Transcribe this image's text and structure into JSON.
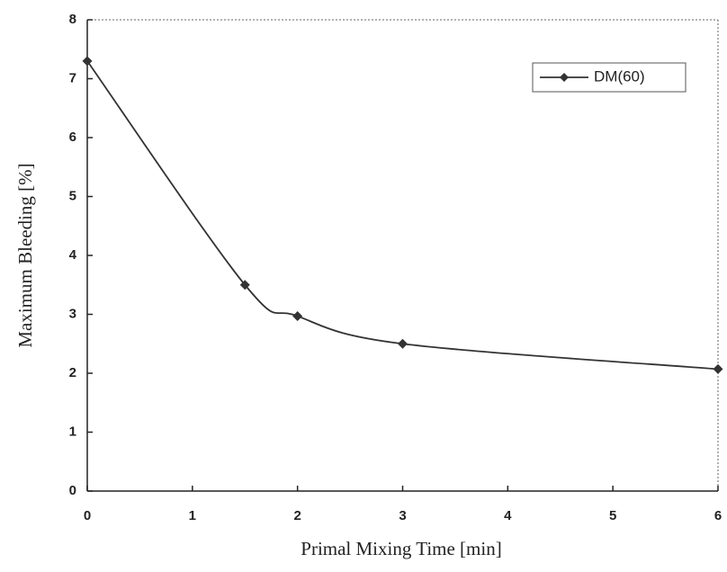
{
  "chart_data": {
    "type": "line",
    "x_label": "Primal Mixing Time [min]",
    "y_label": "Maximum Bleeding [%]",
    "x": [
      0,
      1.5,
      2,
      3,
      6
    ],
    "series": [
      {
        "name": "DM(60)",
        "color": "#333333",
        "marker": "diamond",
        "smooth": true,
        "values": [
          7.3,
          3.5,
          2.97,
          2.5,
          2.07
        ]
      }
    ],
    "xlim": [
      0,
      6
    ],
    "xticks": [
      0,
      1,
      2,
      3,
      4,
      5,
      6
    ],
    "ylim": [
      0,
      8
    ],
    "yticks": [
      0,
      1,
      2,
      3,
      4,
      5,
      6,
      7,
      8
    ],
    "legend": "upper right"
  }
}
